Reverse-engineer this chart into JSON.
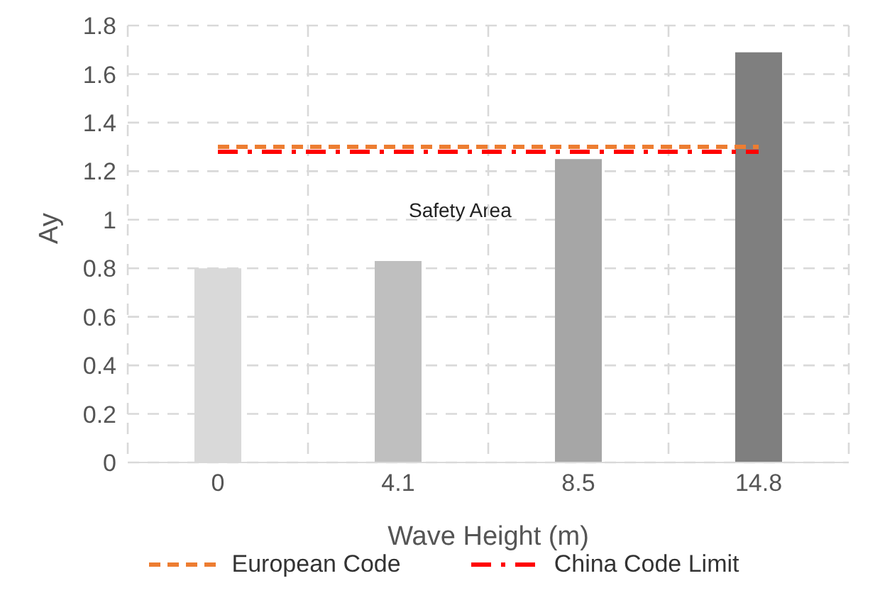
{
  "chart_data": {
    "type": "bar",
    "xlabel": "Wave Height (m)",
    "ylabel": "Ay",
    "categories": [
      "0",
      "4.1",
      "8.5",
      "14.8"
    ],
    "series": [
      {
        "colors": [
          "#d9d9d9",
          "#bfbfbf",
          "#a6a6a6",
          "#7f7f7f"
        ],
        "values": [
          0.8,
          0.83,
          1.25,
          1.69
        ]
      },
      {
        "type": "line",
        "name": "European Code",
        "color": "#ed7d31",
        "line_style": "dashed",
        "values": [
          1.3,
          1.3,
          1.3,
          1.3
        ]
      },
      {
        "type": "line",
        "name": "China Code Limit",
        "color": "#ff0000",
        "line_style": "dashdot",
        "values": [
          1.28,
          1.28,
          1.28,
          1.28
        ]
      }
    ],
    "ylim": [
      0,
      1.8
    ],
    "yticks": [
      0,
      0.2,
      0.4,
      0.6,
      0.8,
      1,
      1.2,
      1.4,
      1.6,
      1.8
    ],
    "grid": true,
    "legend": "bottom",
    "marker": "none",
    "annotations": [
      "Safety Area"
    ]
  }
}
